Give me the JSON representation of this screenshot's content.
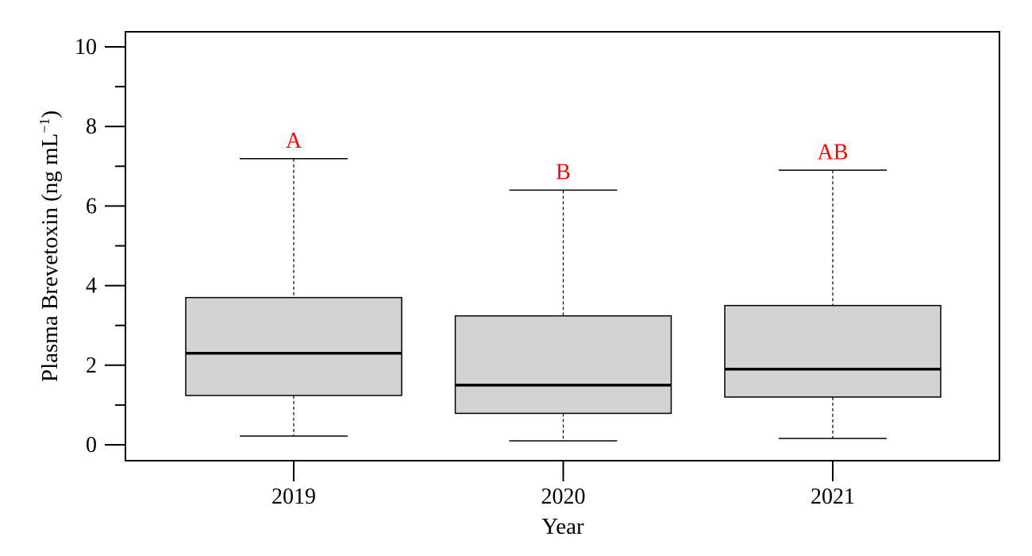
{
  "chart_data": {
    "type": "box",
    "xlabel": "Year",
    "ylabel": "Plasma Brevetoxin (ng mL",
    "ylabel_sup": "−1",
    "ylabel_close": ")",
    "ylim": [
      0,
      10
    ],
    "yticks": [
      0,
      2,
      4,
      6,
      8,
      10
    ],
    "grid": false,
    "box_fill": "#d3d3d3",
    "sig_color": "#ff0000",
    "categories": [
      "2019",
      "2020",
      "2021"
    ],
    "boxes": [
      {
        "category": "2019",
        "whisker_low": 0.22,
        "q1": 1.24,
        "median": 2.3,
        "q3": 3.7,
        "whisker_high": 7.19,
        "letter": "A"
      },
      {
        "category": "2020",
        "whisker_low": 0.1,
        "q1": 0.79,
        "median": 1.5,
        "q3": 3.24,
        "whisker_high": 6.4,
        "letter": "B"
      },
      {
        "category": "2021",
        "whisker_low": 0.16,
        "q1": 1.2,
        "median": 1.9,
        "q3": 3.5,
        "whisker_high": 6.9,
        "letter": "AB"
      }
    ]
  }
}
